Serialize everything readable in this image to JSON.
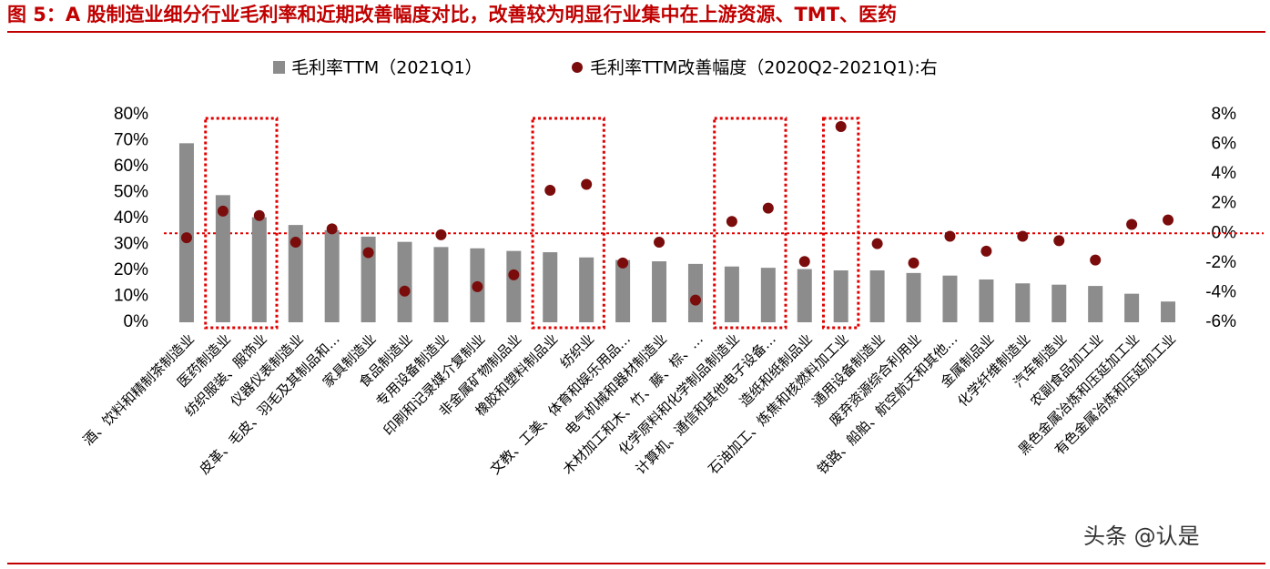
{
  "chart_data": {
    "type": "bar-dot",
    "title": "图 5：A 股制造业细分行业毛利率和近期改善幅度对比，改善较为明显行业集中在上游资源、TMT、医药",
    "watermark": "头条 @认是",
    "categories": [
      "酒、饮料和精制茶制造业",
      "医药制造业",
      "纺织服装、服饰业",
      "仪器仪表制造业",
      "皮革、毛皮、羽毛及其制品和…",
      "家具制造业",
      "食品制造业",
      "专用设备制造业",
      "印刷和记录媒介复制业",
      "非金属矿物制品业",
      "橡胶和塑料制品业",
      "纺织业",
      "文教、工美、体育和娱乐用品…",
      "电气机械和器材制造业",
      "木材加工和木、竹、藤、棕、…",
      "化学原料和化学制品制造业",
      "计算机、通信和其他电子设备…",
      "造纸和纸制品业",
      "石油加工、炼焦和核燃料加工业",
      "通用设备制造业",
      "废弃资源综合利用业",
      "铁路、船舶、航空航天和其他…",
      "金属制品业",
      "化学纤维制造业",
      "汽车制造业",
      "农副食品加工业",
      "黑色金属冶炼和压延加工业",
      "有色金属冶炼和压延加工业"
    ],
    "series": [
      {
        "name": "毛利率TTM（2021Q1）",
        "color": "#8c8c8c",
        "values": [
          69,
          49,
          40.5,
          37.5,
          35.5,
          33,
          31,
          29,
          28.5,
          27.5,
          27,
          25,
          24,
          23.5,
          22.5,
          21.5,
          21,
          20.5,
          20,
          20,
          19,
          18,
          16.5,
          15,
          14.5,
          14,
          11,
          8
        ]
      },
      {
        "name": "毛利率TTM改善幅度（2020Q2-2021Q1):右",
        "color": "#7b0c0c",
        "axis": "y2",
        "values": [
          -0.3,
          1.5,
          1.2,
          -0.6,
          0.3,
          -1.3,
          -3.9,
          -0.1,
          -3.6,
          -2.8,
          2.9,
          3.3,
          -2.0,
          -0.6,
          -4.5,
          0.8,
          1.7,
          -1.9,
          7.2,
          -0.7,
          -2.0,
          -0.2,
          -1.2,
          -0.2,
          -0.5,
          -1.8,
          0.6,
          0.9
        ]
      }
    ],
    "ylim": [
      0,
      80
    ],
    "yticks": [
      {
        "value": 0,
        "label": "0%"
      },
      {
        "value": 10,
        "label": "10%"
      },
      {
        "value": 20,
        "label": "20%"
      },
      {
        "value": 30,
        "label": "30%"
      },
      {
        "value": 40,
        "label": "40%"
      },
      {
        "value": 50,
        "label": "50%"
      },
      {
        "value": 60,
        "label": "60%"
      },
      {
        "value": 70,
        "label": "70%"
      },
      {
        "value": 80,
        "label": "80%"
      }
    ],
    "y2lim": [
      -6,
      8
    ],
    "y2ticks": [
      {
        "value": -6,
        "label": "-6%"
      },
      {
        "value": -4,
        "label": "-4%"
      },
      {
        "value": -2,
        "label": "-2%"
      },
      {
        "value": 0,
        "label": "0%"
      },
      {
        "value": 2,
        "label": "2%"
      },
      {
        "value": 4,
        "label": "4%"
      },
      {
        "value": 6,
        "label": "6%"
      },
      {
        "value": 8,
        "label": "8%"
      }
    ],
    "grid": false
  }
}
